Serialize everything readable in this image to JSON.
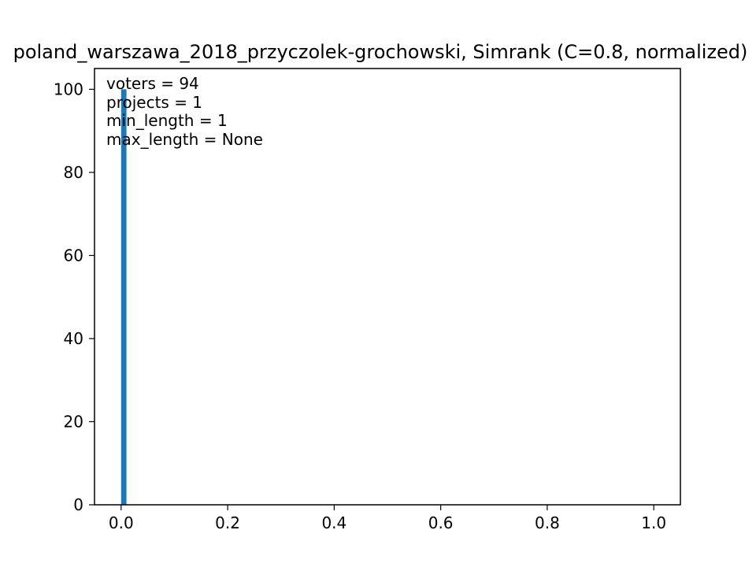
{
  "chart_data": {
    "type": "bar",
    "title": "poland_warszawa_2018_przyczolek-grochowski, Simrank (C=0.8, normalized)",
    "xlabel": "",
    "ylabel": "",
    "xlim": [
      -0.05,
      1.05
    ],
    "ylim": [
      0,
      105
    ],
    "x_ticks": [
      "0.0",
      "0.2",
      "0.4",
      "0.6",
      "0.8",
      "1.0"
    ],
    "y_ticks": [
      "0",
      "20",
      "40",
      "60",
      "80",
      "100"
    ],
    "bins": [
      {
        "x0": 0.0,
        "x1": 0.01,
        "value": 100
      }
    ],
    "bar_color": "#1f77b4",
    "grid": false,
    "annotations": [
      "voters = 94",
      "projects = 1",
      "min_length = 1",
      "max_length = None"
    ]
  }
}
